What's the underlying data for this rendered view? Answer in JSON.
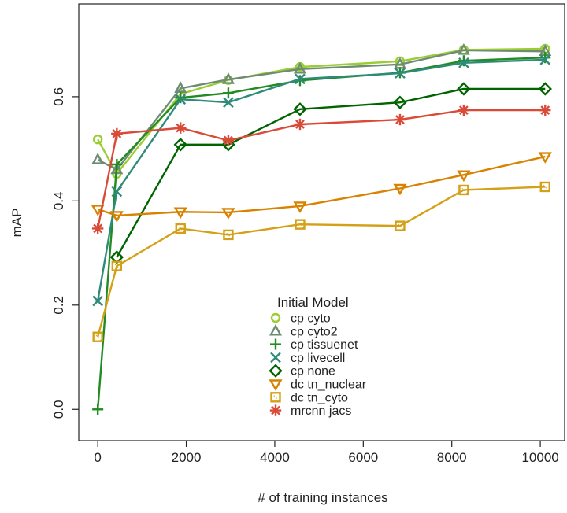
{
  "chart_data": {
    "type": "line",
    "title": "",
    "xlabel": "# of training instances",
    "ylabel": "mAP",
    "xlim": [
      -430,
      10550
    ],
    "ylim": [
      -0.06,
      0.778
    ],
    "xticks": [
      0,
      2000,
      4000,
      6000,
      8000,
      10000
    ],
    "xtick_labels": [
      "0",
      "2000",
      "4000",
      "6000",
      "8000",
      "10000"
    ],
    "yticks": [
      0.0,
      0.2,
      0.4,
      0.6
    ],
    "ytick_labels": [
      "0.0",
      "0.2",
      "0.4",
      "0.6"
    ],
    "grid": false,
    "legend": {
      "title": "Initial Model",
      "placement": "bottom-center"
    },
    "x": [
      0,
      430,
      1870,
      2950,
      4570,
      6830,
      8270,
      10110
    ],
    "series": [
      {
        "name": "cp cyto",
        "marker": "circle",
        "color": "#9acd32",
        "values": [
          0.518,
          0.452,
          0.605,
          0.632,
          0.657,
          0.668,
          0.69,
          0.692
        ]
      },
      {
        "name": "cp cyto2",
        "marker": "triangle",
        "color": "#6e8b74",
        "values": [
          0.479,
          0.46,
          0.616,
          0.633,
          0.653,
          0.662,
          0.689,
          0.687
        ]
      },
      {
        "name": "cp tissuenet",
        "marker": "plus",
        "color": "#228b22",
        "values": [
          0.0,
          0.47,
          0.598,
          0.607,
          0.631,
          0.646,
          0.669,
          0.675
        ]
      },
      {
        "name": "cp livecell",
        "marker": "cross",
        "color": "#2e8b7a",
        "values": [
          0.208,
          0.418,
          0.595,
          0.589,
          0.634,
          0.645,
          0.665,
          0.671
        ]
      },
      {
        "name": "cp none",
        "marker": "diamond",
        "color": "#006400",
        "values": [
          null,
          0.292,
          0.508,
          0.508,
          0.576,
          0.589,
          0.615,
          0.615
        ]
      },
      {
        "name": "dc tn_nuclear",
        "marker": "triangle-down",
        "color": "#d98200",
        "values": [
          0.384,
          0.372,
          0.379,
          0.378,
          0.39,
          0.424,
          0.45,
          0.485
        ]
      },
      {
        "name": "dc tn_cyto",
        "marker": "square-cross",
        "color": "#d4a017",
        "values": [
          0.139,
          0.275,
          0.347,
          0.335,
          0.355,
          0.352,
          0.421,
          0.427
        ]
      },
      {
        "name": "mrcnn jacs",
        "marker": "asterisk",
        "color": "#d94a38",
        "values": [
          0.347,
          0.529,
          0.54,
          0.516,
          0.547,
          0.556,
          0.574,
          0.574
        ]
      }
    ]
  }
}
